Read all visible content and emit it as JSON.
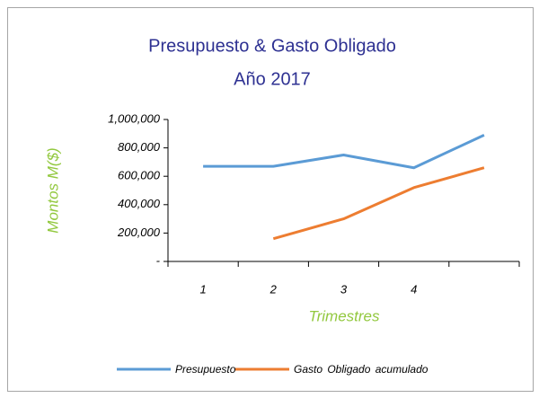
{
  "chart_data": {
    "type": "line",
    "title": "Presupuesto & Gasto Obligado",
    "subtitle": "Año 2017",
    "y_label": "Montos M($)",
    "x_label": "Trimestres",
    "categories": [
      "1",
      "2",
      "3",
      "4",
      null
    ],
    "series": [
      {
        "name": "Presupuesto",
        "color": "#5b9bd5",
        "values": [
          670000,
          670000,
          750000,
          660000,
          890000
        ]
      },
      {
        "name": "Gasto Obligado acumulado",
        "color": "#ed7d31",
        "values": [
          null,
          160000,
          300000,
          520000,
          660000
        ]
      }
    ],
    "ylim": [
      0,
      1000000
    ],
    "yticks": [
      {
        "value": 0,
        "label": "-"
      },
      {
        "value": 200000,
        "label": "200,000"
      },
      {
        "value": 400000,
        "label": "400,000"
      },
      {
        "value": 600000,
        "label": "600,000"
      },
      {
        "value": 800000,
        "label": "800,000"
      },
      {
        "value": 1000000,
        "label": "1,000,000"
      }
    ],
    "grid": false,
    "legend": "bottom"
  }
}
